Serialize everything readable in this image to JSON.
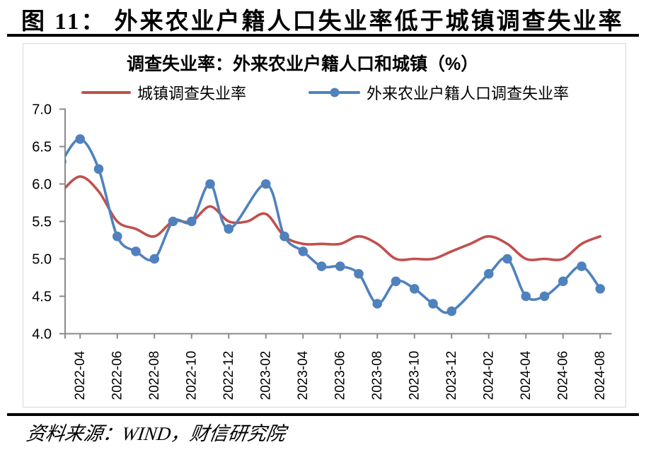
{
  "figure_title": "图 11：  外来农业户籍人口失业率低于城镇调查失业率",
  "source_note": "资料来源：WIND，财信研究院",
  "chart_data": {
    "type": "line",
    "title": "调查失业率：外来农业户籍人口和城镇（%）",
    "x": [
      "2022-03",
      "2022-04",
      "2022-05",
      "2022-06",
      "2022-07",
      "2022-08",
      "2022-09",
      "2022-10",
      "2022-11",
      "2022-12",
      "2023-01",
      "2023-02",
      "2023-03",
      "2023-04",
      "2023-05",
      "2023-06",
      "2023-07",
      "2023-08",
      "2023-09",
      "2023-10",
      "2023-11",
      "2023-12",
      "2024-01",
      "2024-02",
      "2024-03",
      "2024-04",
      "2024-05",
      "2024-06",
      "2024-07",
      "2024-08"
    ],
    "x_tick_labels": [
      "2022-04",
      "2022-06",
      "2022-08",
      "2022-10",
      "2022-12",
      "2023-02",
      "2023-04",
      "2023-06",
      "2023-08",
      "2023-10",
      "2023-12",
      "2024-02",
      "2024-04",
      "2024-06",
      "2024-08"
    ],
    "ylim": [
      4.0,
      7.0
    ],
    "y_ticks": [
      7.0,
      6.5,
      6.0,
      5.5,
      5.0,
      4.5,
      4.0
    ],
    "grid": false,
    "legend_position": "top",
    "axis_color": "#8a8a8a",
    "series": [
      {
        "name": "城镇调查失业率",
        "color": "#C0504D",
        "marker": false,
        "smooth": true,
        "values": [
          5.9,
          6.1,
          5.9,
          5.5,
          5.4,
          5.3,
          5.5,
          5.5,
          5.7,
          5.5,
          5.5,
          5.6,
          5.3,
          5.2,
          5.2,
          5.2,
          5.3,
          5.2,
          5.0,
          5.0,
          5.0,
          5.1,
          5.2,
          5.3,
          5.2,
          5.0,
          5.0,
          5.0,
          5.2,
          5.3
        ]
      },
      {
        "name": "外来农业户籍人口调查失业率",
        "color": "#4F81BD",
        "marker": true,
        "smooth": true,
        "values": [
          6.3,
          6.6,
          6.2,
          5.3,
          5.1,
          5.0,
          5.5,
          5.5,
          6.0,
          5.4,
          null,
          6.0,
          5.3,
          5.1,
          4.9,
          4.9,
          4.8,
          4.4,
          4.7,
          4.6,
          4.4,
          4.3,
          null,
          4.8,
          5.0,
          4.5,
          4.5,
          4.7,
          4.9,
          4.6
        ]
      }
    ]
  }
}
